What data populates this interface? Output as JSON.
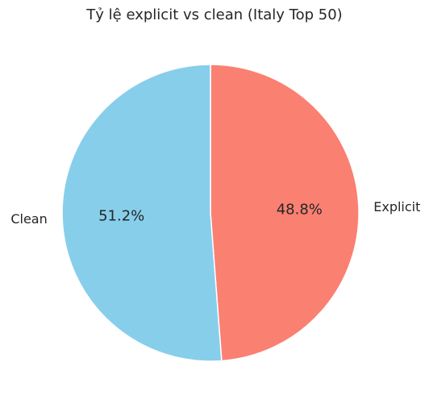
{
  "chart_data": {
    "type": "pie",
    "title": "Tỷ lệ explicit vs clean (Italy Top 50)",
    "slices": [
      {
        "label": "Explicit",
        "value": 48.8,
        "pct_label": "48.8%",
        "color": "#fa8072"
      },
      {
        "label": "Clean",
        "value": 51.2,
        "pct_label": "51.2%",
        "color": "#87ceeb"
      }
    ],
    "start_angle_deg": 90,
    "direction": "clockwise",
    "wedge_edge_color": "#ffffff",
    "legend": "none"
  }
}
